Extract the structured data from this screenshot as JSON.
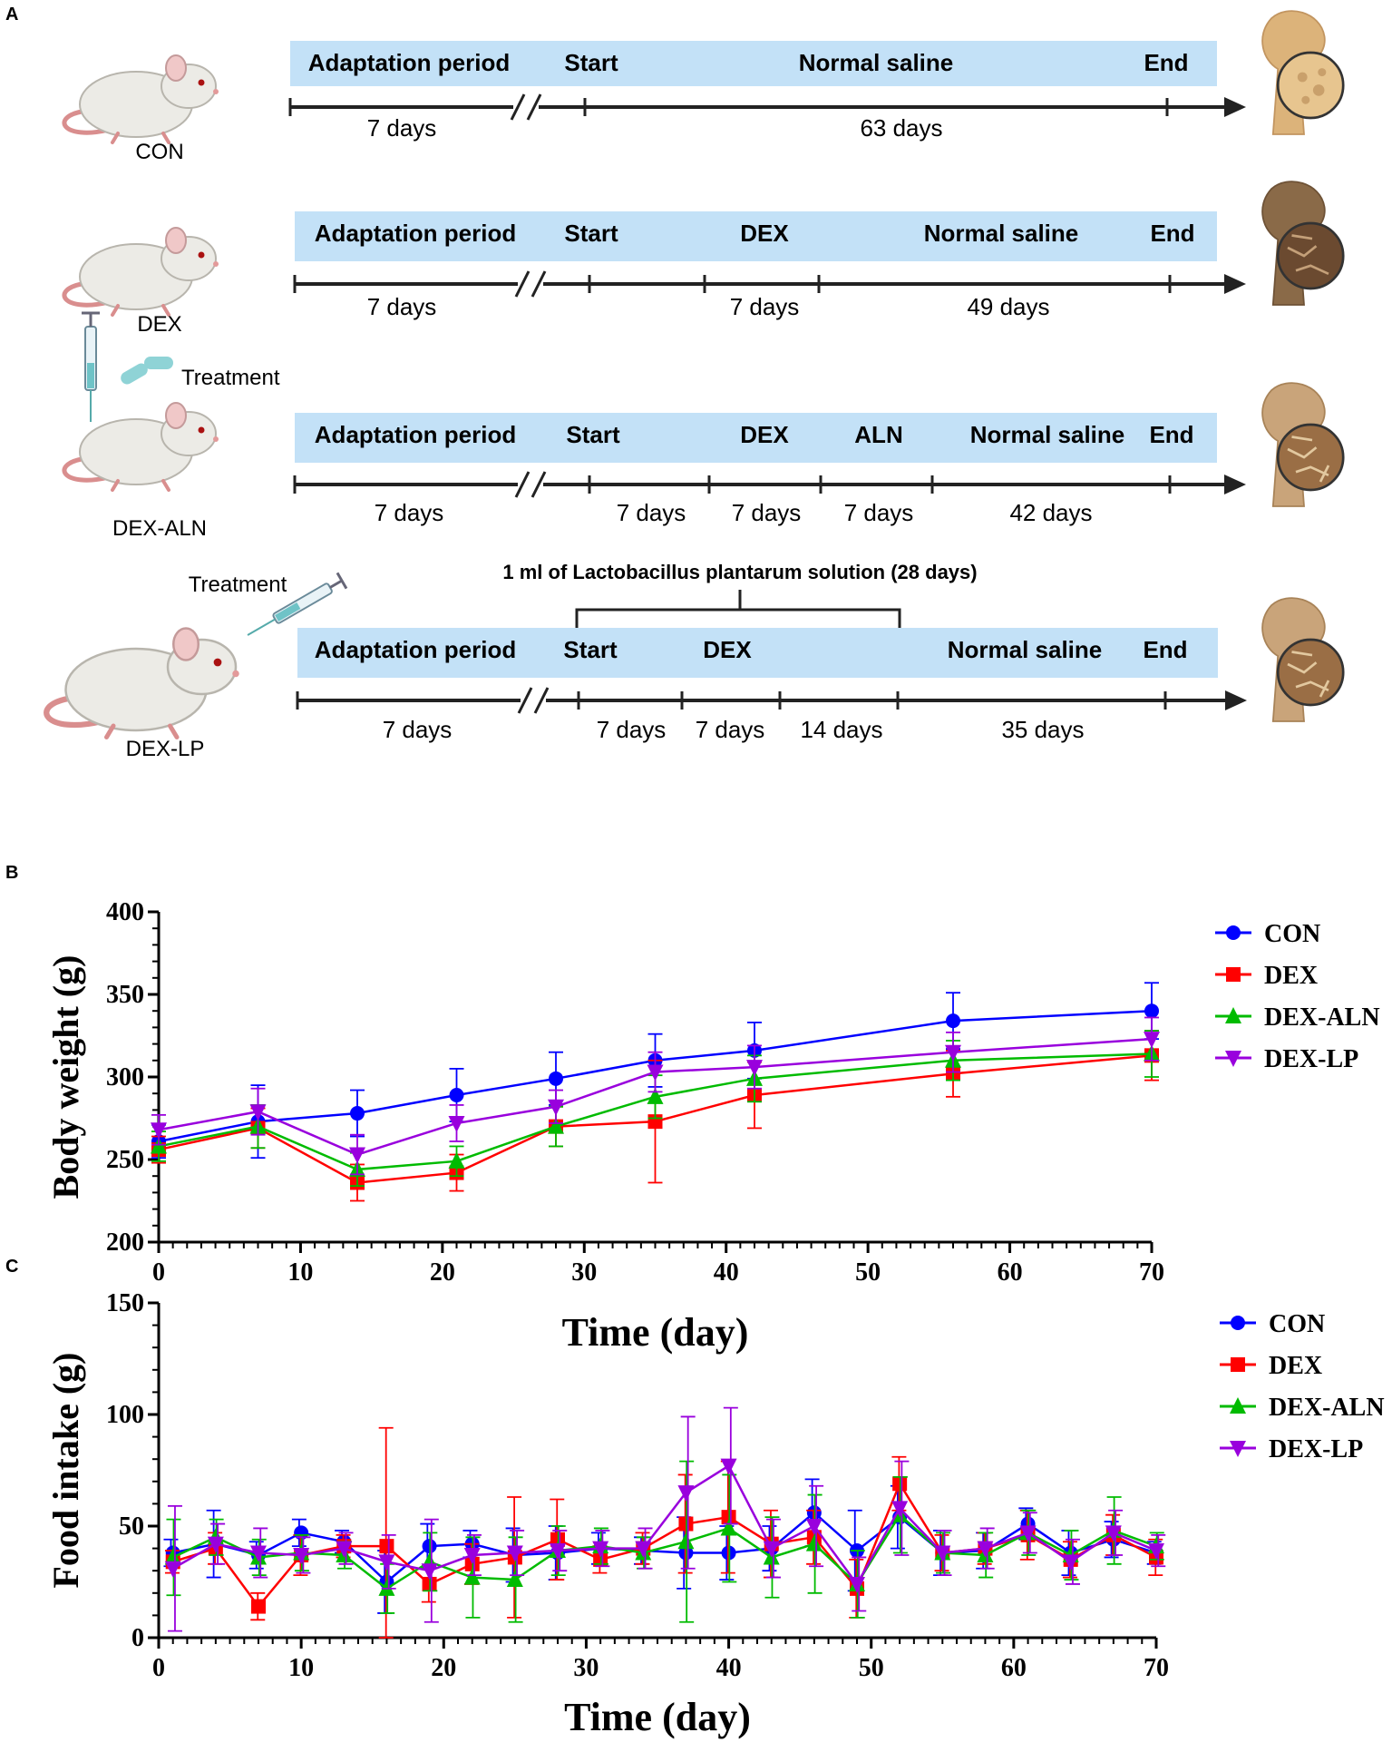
{
  "panel_labels": {
    "a": "A",
    "b": "B",
    "c": "C"
  },
  "protocol": {
    "groups": [
      {
        "name": "CON",
        "segments": [
          {
            "header": "Adaptation period",
            "duration": "7 days"
          },
          {
            "header": "Start",
            "duration": ""
          },
          {
            "header": "Normal saline",
            "duration": "63 days"
          },
          {
            "header": "End",
            "duration": ""
          }
        ]
      },
      {
        "name": "DEX",
        "segments": [
          {
            "header": "Adaptation period",
            "duration": "7 days"
          },
          {
            "header": "Start",
            "duration": ""
          },
          {
            "header": "DEX",
            "duration": "7 days"
          },
          {
            "header": "Normal saline",
            "duration": "49 days"
          },
          {
            "header": "End",
            "duration": ""
          }
        ]
      },
      {
        "name": "DEX-ALN",
        "treatment_label": "Treatment",
        "segments": [
          {
            "header": "Adaptation period",
            "duration": "7 days"
          },
          {
            "header": "Start",
            "duration": "7 days"
          },
          {
            "header": "DEX",
            "duration": "7 days"
          },
          {
            "header": "ALN",
            "duration": "7 days"
          },
          {
            "header": "Normal saline",
            "duration": "42 days"
          },
          {
            "header": "End",
            "duration": ""
          }
        ]
      },
      {
        "name": "DEX-LP",
        "treatment_label": "Treatment",
        "bracket_label": "1 ml of Lactobacillus plantarum solution (28 days)",
        "segments": [
          {
            "header": "Adaptation period",
            "duration": "7 days"
          },
          {
            "header": "Start",
            "duration": "7 days"
          },
          {
            "header": "DEX",
            "duration": "7 days"
          },
          {
            "header": "",
            "duration": "14 days"
          },
          {
            "header": "Normal saline",
            "duration": "35 days"
          },
          {
            "header": "End",
            "duration": ""
          }
        ]
      }
    ]
  },
  "colors": {
    "CON": "#0000ff",
    "DEX": "#ff0000",
    "DEX-ALN": "#00bb00",
    "DEX-LP": "#9900dd",
    "timeline_bg": "#c3e1f7"
  },
  "chart_data": [
    {
      "type": "line",
      "panel": "B",
      "xlabel": "Time (day)",
      "ylabel": "Body weight (g)",
      "xlim": [
        0,
        70
      ],
      "ylim": [
        200,
        400
      ],
      "xticks": [
        0,
        10,
        20,
        30,
        40,
        50,
        60,
        70
      ],
      "yticks": [
        200,
        250,
        300,
        350,
        400
      ],
      "legend": "top-right",
      "series": [
        {
          "name": "CON",
          "marker": "circle",
          "x": [
            0,
            7,
            14,
            21,
            28,
            35,
            42,
            56,
            70
          ],
          "y": [
            261,
            273,
            278,
            289,
            299,
            310,
            316,
            334,
            340
          ],
          "err": [
            10,
            22,
            14,
            16,
            16,
            16,
            17,
            17,
            17
          ]
        },
        {
          "name": "DEX",
          "marker": "square",
          "x": [
            0,
            7,
            14,
            21,
            28,
            35,
            42,
            56,
            70
          ],
          "y": [
            256,
            269,
            236,
            242,
            270,
            273,
            289,
            302,
            313
          ],
          "err": [
            8,
            12,
            11,
            11,
            12,
            37,
            20,
            14,
            15
          ]
        },
        {
          "name": "DEX-ALN",
          "marker": "triangle-up",
          "x": [
            0,
            7,
            14,
            21,
            28,
            35,
            42,
            56,
            70
          ],
          "y": [
            258,
            270,
            244,
            249,
            270,
            288,
            299,
            310,
            314
          ],
          "err": [
            9,
            13,
            10,
            9,
            12,
            13,
            14,
            12,
            14
          ]
        },
        {
          "name": "DEX-LP",
          "marker": "triangle-down",
          "x": [
            0,
            7,
            14,
            21,
            28,
            35,
            42,
            56,
            70
          ],
          "y": [
            268,
            279,
            253,
            272,
            282,
            303,
            306,
            315,
            323
          ],
          "err": [
            9,
            14,
            12,
            11,
            10,
            12,
            13,
            12,
            13
          ]
        }
      ]
    },
    {
      "type": "line",
      "panel": "C",
      "xlabel": "Time (day)",
      "ylabel": "Food intake (g)",
      "xlim": [
        0,
        70
      ],
      "ylim": [
        0,
        150
      ],
      "xticks": [
        0,
        10,
        20,
        30,
        40,
        50,
        60,
        70
      ],
      "yticks": [
        0,
        50,
        100,
        150
      ],
      "legend": "top-right",
      "series": [
        {
          "name": "CON",
          "marker": "circle",
          "x": [
            1,
            4,
            7,
            10,
            13,
            16,
            19,
            22,
            25,
            28,
            31,
            34,
            37,
            40,
            43,
            46,
            49,
            52,
            55,
            58,
            61,
            64,
            67,
            70
          ],
          "y": [
            38,
            42,
            37,
            47,
            43,
            25,
            41,
            42,
            37,
            38,
            40,
            39,
            38,
            38,
            40,
            56,
            39,
            54,
            38,
            39,
            51,
            38,
            44,
            38
          ],
          "err": [
            6,
            15,
            6,
            6,
            5,
            14,
            10,
            6,
            12,
            12,
            7,
            6,
            16,
            12,
            10,
            15,
            18,
            14,
            10,
            8,
            7,
            10,
            8,
            5
          ]
        },
        {
          "name": "DEX",
          "marker": "square",
          "x": [
            1,
            4,
            7,
            10,
            13,
            16,
            19,
            22,
            25,
            28,
            31,
            34,
            37,
            40,
            43,
            46,
            49,
            52,
            55,
            58,
            61,
            64,
            67,
            70
          ],
          "y": [
            34,
            40,
            14,
            37,
            41,
            41,
            24,
            33,
            36,
            44,
            35,
            40,
            51,
            54,
            42,
            45,
            22,
            69,
            38,
            40,
            46,
            35,
            46,
            36
          ],
          "err": [
            5,
            7,
            6,
            9,
            5,
            53,
            8,
            9,
            27,
            18,
            6,
            7,
            22,
            25,
            15,
            12,
            13,
            12,
            8,
            7,
            11,
            8,
            9,
            8
          ]
        },
        {
          "name": "DEX-ALN",
          "marker": "triangle-up",
          "x": [
            1,
            4,
            7,
            10,
            13,
            16,
            19,
            22,
            25,
            28,
            31,
            34,
            37,
            40,
            43,
            46,
            49,
            52,
            55,
            58,
            61,
            64,
            67,
            70
          ],
          "y": [
            36,
            45,
            36,
            38,
            37,
            22,
            34,
            27,
            26,
            39,
            41,
            38,
            43,
            49,
            36,
            42,
            24,
            55,
            38,
            37,
            47,
            37,
            48,
            41
          ],
          "err": [
            17,
            8,
            8,
            8,
            6,
            11,
            13,
            18,
            19,
            11,
            8,
            7,
            36,
            24,
            18,
            22,
            15,
            17,
            9,
            10,
            10,
            11,
            15,
            6
          ]
        },
        {
          "name": "DEX-LP",
          "marker": "triangle-down",
          "x": [
            1,
            4,
            7,
            10,
            13,
            16,
            19,
            22,
            25,
            28,
            31,
            34,
            37,
            40,
            43,
            46,
            49,
            52,
            55,
            58,
            61,
            64,
            67,
            70
          ],
          "y": [
            31,
            42,
            38,
            37,
            40,
            34,
            30,
            37,
            38,
            39,
            40,
            40,
            65,
            77,
            40,
            50,
            24,
            58,
            38,
            40,
            47,
            34,
            47,
            39
          ],
          "err": [
            28,
            9,
            11,
            8,
            7,
            12,
            23,
            9,
            10,
            9,
            8,
            9,
            34,
            26,
            13,
            18,
            12,
            21,
            10,
            9,
            9,
            10,
            10,
            7
          ]
        }
      ]
    }
  ]
}
